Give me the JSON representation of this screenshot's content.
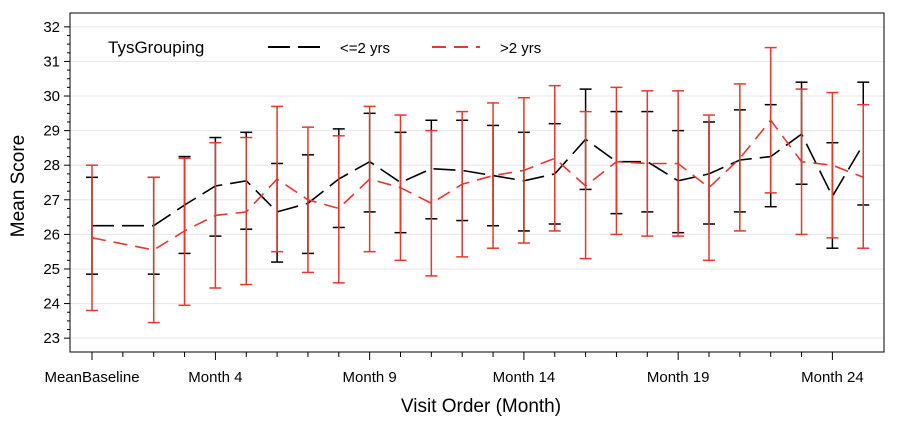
{
  "chart_data": {
    "type": "line",
    "xlabel": "Visit Order (Month)",
    "ylabel": "Mean Score",
    "ylim": [
      22.6,
      32.4
    ],
    "yticks": [
      23,
      24,
      25,
      26,
      27,
      28,
      29,
      30,
      31,
      32
    ],
    "x": [
      0,
      1,
      2,
      3,
      4,
      5,
      6,
      7,
      8,
      9,
      10,
      11,
      12,
      13,
      14,
      15,
      16,
      17,
      18,
      19,
      20,
      21,
      22,
      23,
      24
    ],
    "x_tick_positions": [
      0,
      4,
      9,
      14,
      19,
      24
    ],
    "x_tick_labels": [
      "MeanBaseline",
      "Month 4",
      "Month 9",
      "Month 14",
      "Month 19",
      "Month 24"
    ],
    "legend": {
      "title": "TysGrouping",
      "placement": "top-left"
    },
    "grid": "horizontal",
    "series": [
      {
        "name": "<=2 yrs",
        "color": "#000000",
        "dash": "long-dash",
        "points": [
          {
            "x": 0,
            "y": 26.25,
            "low": 24.85,
            "high": 27.65
          },
          {
            "x": 2,
            "y": 26.25,
            "low": 24.85,
            "high": 27.65
          },
          {
            "x": 3,
            "y": 26.85,
            "low": 25.45,
            "high": 28.25
          },
          {
            "x": 4,
            "y": 27.4,
            "low": 25.95,
            "high": 28.8
          },
          {
            "x": 5,
            "y": 27.55,
            "low": 26.15,
            "high": 28.95
          },
          {
            "x": 6,
            "y": 26.65,
            "low": 25.2,
            "high": 28.05
          },
          {
            "x": 7,
            "y": 26.9,
            "low": 25.45,
            "high": 28.3
          },
          {
            "x": 8,
            "y": 27.6,
            "low": 26.2,
            "high": 29.05
          },
          {
            "x": 9,
            "y": 28.1,
            "low": 26.65,
            "high": 29.5
          },
          {
            "x": 10,
            "y": 27.5,
            "low": 26.05,
            "high": 28.95
          },
          {
            "x": 11,
            "y": 27.9,
            "low": 26.45,
            "high": 29.3
          },
          {
            "x": 12,
            "y": 27.85,
            "low": 26.4,
            "high": 29.3
          },
          {
            "x": 13,
            "y": 27.7,
            "low": 26.25,
            "high": 29.15
          },
          {
            "x": 14,
            "y": 27.55,
            "low": 26.1,
            "high": 28.95
          },
          {
            "x": 15,
            "y": 27.75,
            "low": 26.3,
            "high": 29.2
          },
          {
            "x": 16,
            "y": 28.75,
            "low": 27.3,
            "high": 30.2
          },
          {
            "x": 17,
            "y": 28.1,
            "low": 26.6,
            "high": 29.55
          },
          {
            "x": 18,
            "y": 28.1,
            "low": 26.65,
            "high": 29.55
          },
          {
            "x": 19,
            "y": 27.55,
            "low": 26.05,
            "high": 29.0
          },
          {
            "x": 20,
            "y": 27.75,
            "low": 26.3,
            "high": 29.25
          },
          {
            "x": 21,
            "y": 28.15,
            "low": 26.65,
            "high": 29.6
          },
          {
            "x": 22,
            "y": 28.25,
            "low": 26.8,
            "high": 29.75
          },
          {
            "x": 23,
            "y": 28.9,
            "low": 27.45,
            "high": 30.4
          },
          {
            "x": 24,
            "y": 27.1,
            "low": 25.6,
            "high": 28.65
          },
          {
            "x": 25,
            "y": 28.6,
            "low": 26.85,
            "high": 30.4
          }
        ]
      },
      {
        "name": ">2 yrs",
        "color": "#e8372b",
        "dash": "dash",
        "points": [
          {
            "x": 0,
            "y": 25.9,
            "low": 23.8,
            "high": 28.0
          },
          {
            "x": 2,
            "y": 25.55,
            "low": 23.45,
            "high": 27.65
          },
          {
            "x": 3,
            "y": 26.1,
            "low": 23.95,
            "high": 28.2
          },
          {
            "x": 4,
            "y": 26.55,
            "low": 24.45,
            "high": 28.65
          },
          {
            "x": 5,
            "y": 26.65,
            "low": 24.55,
            "high": 28.8
          },
          {
            "x": 6,
            "y": 27.6,
            "low": 25.5,
            "high": 29.7
          },
          {
            "x": 7,
            "y": 27.0,
            "low": 24.9,
            "high": 29.1
          },
          {
            "x": 8,
            "y": 26.75,
            "low": 24.6,
            "high": 28.85
          },
          {
            "x": 9,
            "y": 27.6,
            "low": 25.5,
            "high": 29.7
          },
          {
            "x": 10,
            "y": 27.35,
            "low": 25.25,
            "high": 29.45
          },
          {
            "x": 11,
            "y": 26.9,
            "low": 24.8,
            "high": 29.0
          },
          {
            "x": 12,
            "y": 27.45,
            "low": 25.35,
            "high": 29.55
          },
          {
            "x": 13,
            "y": 27.7,
            "low": 25.6,
            "high": 29.8
          },
          {
            "x": 14,
            "y": 27.85,
            "low": 25.75,
            "high": 29.95
          },
          {
            "x": 15,
            "y": 28.2,
            "low": 26.1,
            "high": 30.3
          },
          {
            "x": 16,
            "y": 27.4,
            "low": 25.3,
            "high": 29.55
          },
          {
            "x": 17,
            "y": 28.1,
            "low": 26.0,
            "high": 30.25
          },
          {
            "x": 18,
            "y": 28.05,
            "low": 25.95,
            "high": 30.15
          },
          {
            "x": 19,
            "y": 28.05,
            "low": 25.95,
            "high": 30.15
          },
          {
            "x": 20,
            "y": 27.35,
            "low": 25.25,
            "high": 29.45
          },
          {
            "x": 21,
            "y": 28.2,
            "low": 26.1,
            "high": 30.35
          },
          {
            "x": 22,
            "y": 29.3,
            "low": 27.2,
            "high": 31.4
          },
          {
            "x": 23,
            "y": 28.1,
            "low": 26.0,
            "high": 30.2
          },
          {
            "x": 24,
            "y": 28.0,
            "low": 25.9,
            "high": 30.1
          },
          {
            "x": 25,
            "y": 27.65,
            "low": 25.6,
            "high": 29.75
          }
        ]
      }
    ]
  }
}
